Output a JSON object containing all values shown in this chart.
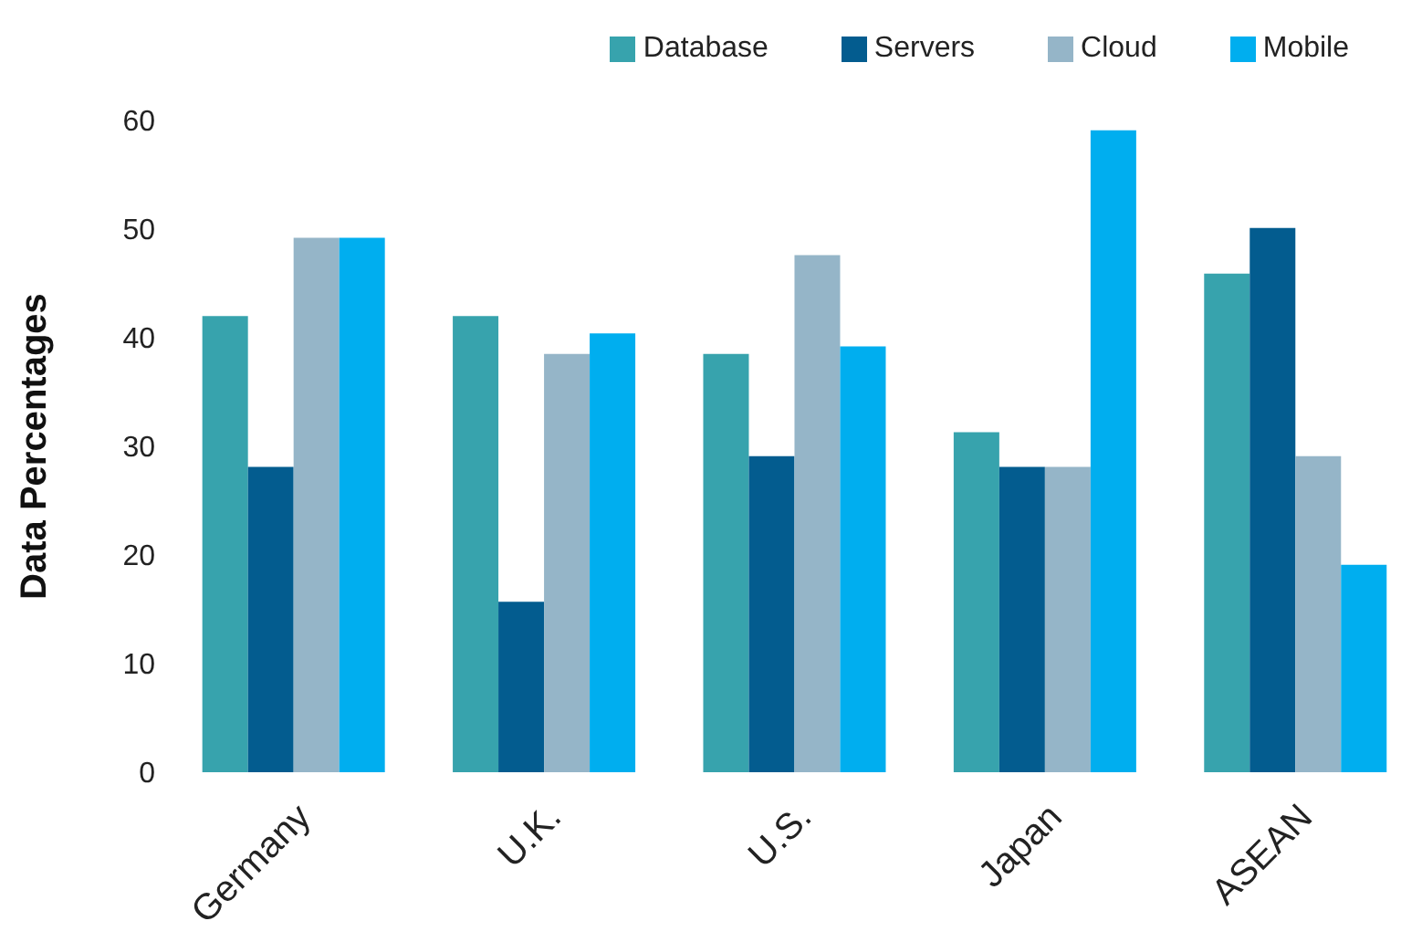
{
  "chart_data": {
    "type": "bar",
    "ylabel": "Data Percentages",
    "categories": [
      "Germany",
      "U.K.",
      "U.S.",
      "Japan",
      "ASEAN"
    ],
    "series": [
      {
        "name": "Database",
        "color": "#37a3ad",
        "values": [
          42,
          42,
          38.5,
          31.3,
          45.9
        ]
      },
      {
        "name": "Servers",
        "color": "#035c8f",
        "values": [
          28.1,
          15.7,
          29.1,
          28.1,
          50.1
        ]
      },
      {
        "name": "Cloud",
        "color": "#95b5c8",
        "values": [
          49.2,
          38.5,
          47.6,
          28.1,
          29.1
        ]
      },
      {
        "name": "Mobile",
        "color": "#00aeef",
        "values": [
          49.2,
          40.4,
          39.2,
          59.1,
          19.1
        ]
      }
    ],
    "ylim": [
      0,
      60
    ],
    "yticks": [
      0,
      10,
      20,
      30,
      40,
      50,
      60
    ],
    "grid": false,
    "legend": "top right"
  }
}
